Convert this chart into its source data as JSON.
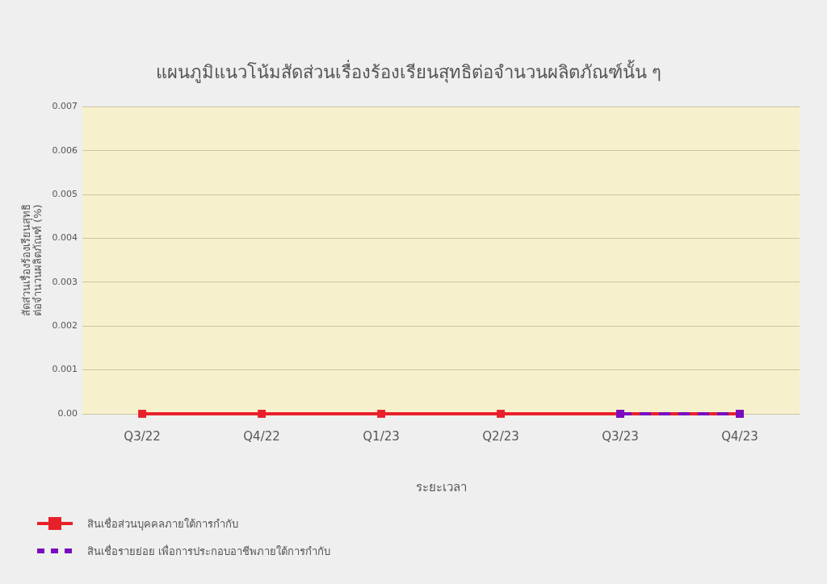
{
  "chart_data": {
    "type": "line",
    "title": "แผนภูมิแนวโน้มสัดส่วนเรื่องร้องเรียนสุทธิต่อจำนวนผลิตภัณฑ์นั้น ๆ",
    "xlabel": "ระยะเวลา",
    "ylabel": "สัดส่วนเรื่องร้องเรียนสุทธิ\nต่อจำนวนผลิตภัณฑ์ (%)",
    "categories": [
      "Q3/22",
      "Q4/22",
      "Q1/23",
      "Q2/23",
      "Q3/23",
      "Q4/23"
    ],
    "series": [
      {
        "name": "สินเชื่อส่วนบุคคลภายใต้การกำกับ",
        "color": "#e8202a",
        "values": [
          0,
          0,
          0,
          0,
          0,
          0
        ],
        "line_style": "solid"
      },
      {
        "name": "สินเชื่อรายย่อย เพื่อการประกอบอาชีพภายใต้การกำกับ",
        "color": "#7a0bc0",
        "values": [
          null,
          null,
          null,
          null,
          0,
          0
        ],
        "line_style": "dashed"
      }
    ],
    "ylim": [
      0,
      0.007
    ],
    "yticks": [
      {
        "value": 0,
        "label": "0.00"
      },
      0.001,
      0.002,
      0.003,
      0.004,
      0.005,
      0.006,
      0.007
    ],
    "grid": "y",
    "legend": "bottom left",
    "marker": "square"
  }
}
